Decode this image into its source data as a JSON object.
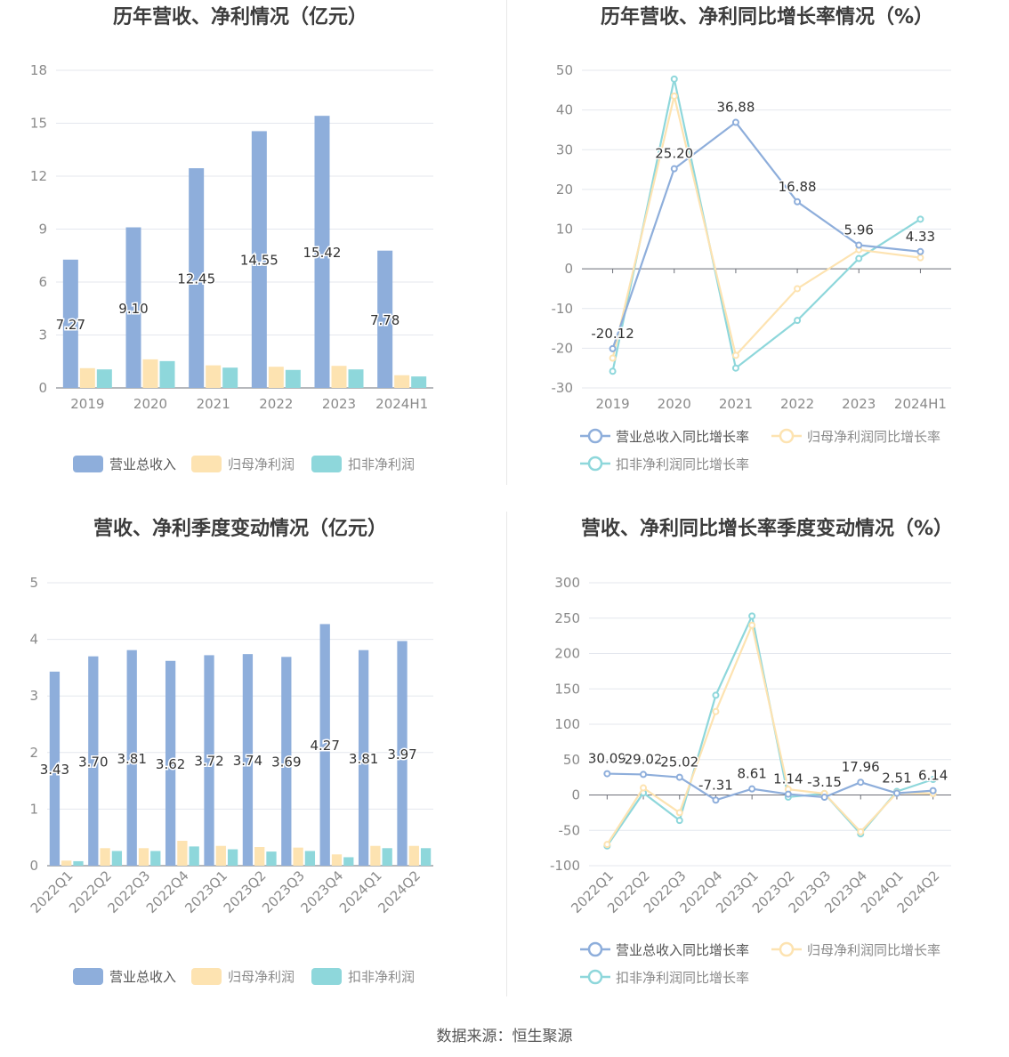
{
  "footer": "数据来源：恒生聚源",
  "colors": {
    "revenue": "#8eaedb",
    "net_profit": "#fde3b1",
    "deducted": "#8ed7db",
    "grid": "#e4e7ee",
    "axis_text": "#8a8a8a",
    "title": "#3c3c3c",
    "label": "#333333"
  },
  "chart_data": [
    {
      "type": "bar",
      "title": "历年营收、净利情况（亿元）",
      "categories": [
        "2019",
        "2020",
        "2021",
        "2022",
        "2023",
        "2024H1"
      ],
      "ylim": [
        0,
        18
      ],
      "yticks": [
        0,
        3,
        6,
        9,
        12,
        15,
        18
      ],
      "series": [
        {
          "name": "营业总收入",
          "values": [
            7.27,
            9.1,
            12.45,
            14.55,
            15.42,
            7.78
          ],
          "labeled": true
        },
        {
          "name": "归母净利润",
          "values": [
            1.12,
            1.62,
            1.28,
            1.2,
            1.25,
            0.72
          ]
        },
        {
          "name": "扣非净利润",
          "values": [
            1.05,
            1.52,
            1.15,
            1.02,
            1.05,
            0.65
          ]
        }
      ],
      "labels": [
        "7.27",
        "9.10",
        "12.45",
        "14.55",
        "15.42",
        "7.78"
      ],
      "grid": true,
      "legend": "bottom"
    },
    {
      "type": "line",
      "title": "历年营收、净利同比增长率情况（%）",
      "categories": [
        "2019",
        "2020",
        "2021",
        "2022",
        "2023",
        "2024H1"
      ],
      "ylim": [
        -30,
        50
      ],
      "yticks": [
        -30,
        -20,
        -10,
        0,
        10,
        20,
        30,
        40,
        50
      ],
      "series": [
        {
          "name": "营业总收入同比增长率",
          "values": [
            -20.12,
            25.2,
            36.88,
            16.88,
            5.96,
            4.33
          ],
          "labeled": true
        },
        {
          "name": "归母净利润同比增长率",
          "values": [
            -22.5,
            43.5,
            -21.8,
            -5.0,
            4.8,
            2.8
          ]
        },
        {
          "name": "扣非净利润同比增长率",
          "values": [
            -25.8,
            47.8,
            -25.0,
            -13.0,
            2.6,
            12.5
          ]
        }
      ],
      "labels": [
        "-20.12",
        "25.20",
        "36.88",
        "16.88",
        "5.96",
        "4.33"
      ],
      "grid": true,
      "legend": "bottom"
    },
    {
      "type": "bar",
      "title": "营收、净利季度变动情况（亿元）",
      "categories": [
        "2022Q1",
        "2022Q2",
        "2022Q3",
        "2022Q4",
        "2023Q1",
        "2023Q2",
        "2023Q3",
        "2023Q4",
        "2024Q1",
        "2024Q2"
      ],
      "ylim": [
        0,
        5
      ],
      "yticks": [
        0,
        1,
        2,
        3,
        4,
        5
      ],
      "series": [
        {
          "name": "营业总收入",
          "values": [
            3.43,
            3.7,
            3.81,
            3.62,
            3.72,
            3.74,
            3.69,
            4.27,
            3.81,
            3.97
          ],
          "labeled": true
        },
        {
          "name": "归母净利润",
          "values": [
            0.09,
            0.31,
            0.31,
            0.44,
            0.35,
            0.33,
            0.32,
            0.2,
            0.35,
            0.35
          ]
        },
        {
          "name": "扣非净利润",
          "values": [
            0.08,
            0.26,
            0.26,
            0.34,
            0.29,
            0.25,
            0.26,
            0.15,
            0.31,
            0.31
          ]
        }
      ],
      "labels": [
        "3.43",
        "3.70",
        "3.81",
        "3.62",
        "3.72",
        "3.74",
        "3.69",
        "4.27",
        "3.81",
        "3.97"
      ],
      "grid": true,
      "legend": "bottom"
    },
    {
      "type": "line",
      "title": "营收、净利同比增长率季度变动情况（%）",
      "categories": [
        "2022Q1",
        "2022Q2",
        "2022Q3",
        "2022Q4",
        "2023Q1",
        "2023Q2",
        "2023Q3",
        "2023Q4",
        "2024Q1",
        "2024Q2"
      ],
      "ylim": [
        -100,
        300
      ],
      "yticks": [
        -100,
        -50,
        0,
        50,
        100,
        150,
        200,
        250,
        300
      ],
      "series": [
        {
          "name": "营业总收入同比增长率",
          "values": [
            30.09,
            29.02,
            25.02,
            -7.31,
            8.61,
            1.14,
            -3.15,
            17.96,
            2.51,
            6.14
          ],
          "labeled": true
        },
        {
          "name": "归母净利润同比增长率",
          "values": [
            -70,
            10,
            -25,
            118,
            240,
            8,
            2,
            -52,
            3,
            2
          ]
        },
        {
          "name": "扣非净利润同比增长率",
          "values": [
            -72,
            3,
            -36,
            141,
            253,
            -3,
            2,
            -55,
            5,
            22
          ]
        }
      ],
      "labels": [
        "30.09",
        "29.02",
        "25.02",
        "-7.31",
        "8.61",
        "1.14",
        "-3.15",
        "17.96",
        "2.51",
        "6.14"
      ],
      "grid": true,
      "legend": "bottom"
    }
  ]
}
